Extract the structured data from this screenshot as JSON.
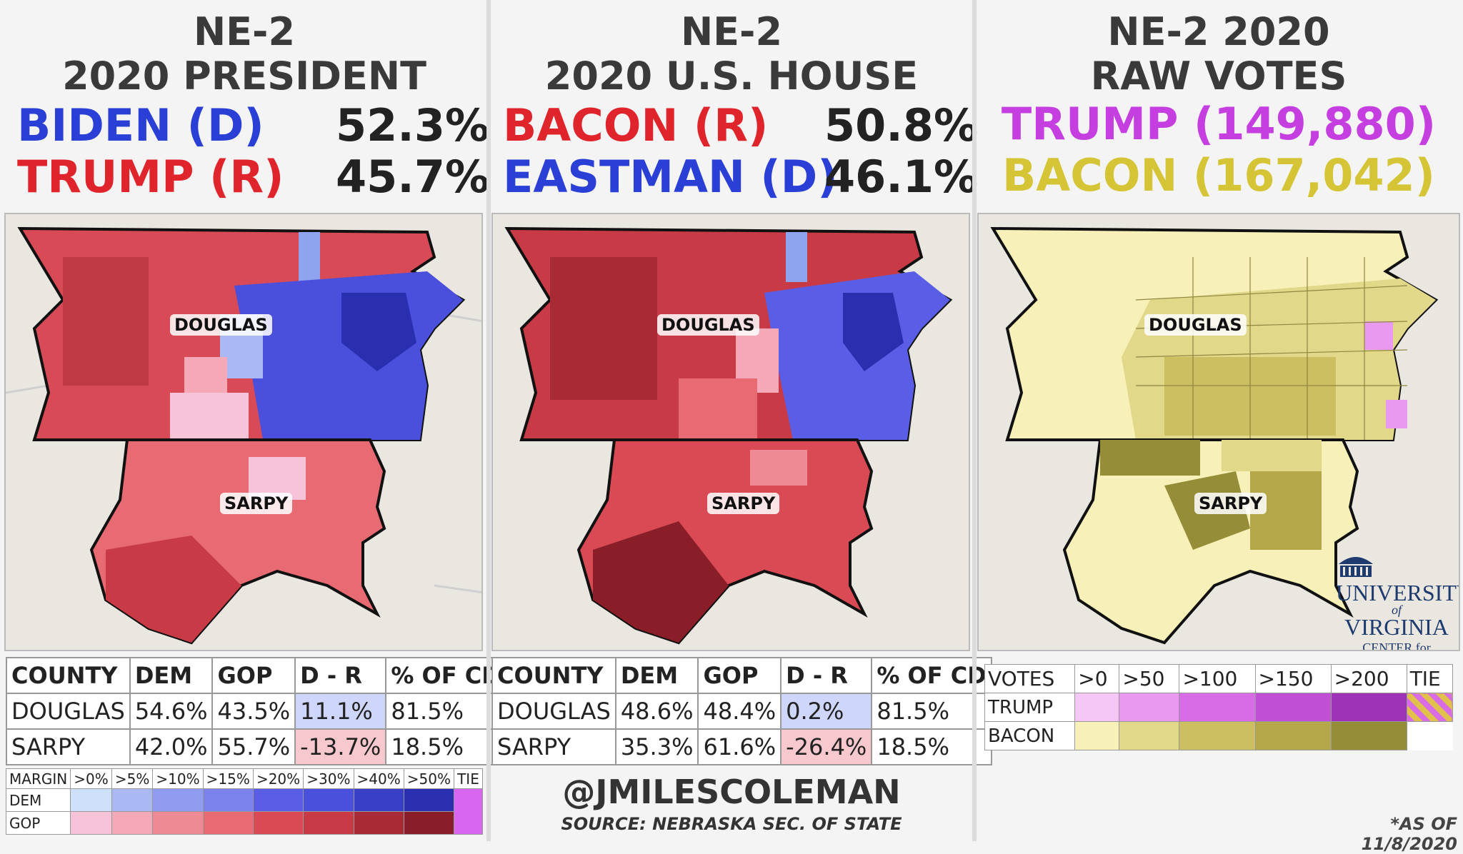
{
  "panels": {
    "president": {
      "title_line1": "NE-2",
      "title_line2": "2020 PRESIDENT",
      "cand1": {
        "name": "BIDEN (D)",
        "pct": "52.3%",
        "color": "#2a3fd6"
      },
      "cand2": {
        "name": "TRUMP (R)",
        "pct": "45.7%",
        "color": "#e0242c"
      },
      "county_labels": [
        "DOUGLAS",
        "SARPY"
      ],
      "table": {
        "headers": [
          "COUNTY",
          "DEM",
          "GOP",
          "D - R",
          "% OF CD"
        ],
        "rows": [
          [
            "DOUGLAS",
            "54.6%",
            "43.5%",
            "11.1%",
            "81.5%"
          ],
          [
            "SARPY",
            "42.0%",
            "55.7%",
            "-13.7%",
            "18.5%"
          ]
        ]
      },
      "legend": {
        "header": [
          "MARGIN",
          ">0%",
          ">5%",
          ">10%",
          ">15%",
          ">20%",
          ">30%",
          ">40%",
          ">50%",
          "TIE"
        ],
        "dem_label": "DEM",
        "gop_label": "GOP",
        "dem_colors": [
          "#cfe0fb",
          "#aab8f3",
          "#8f9cf0",
          "#7b82ec",
          "#5a5ee6",
          "#4a4fdc",
          "#3a3fc8",
          "#2a2fb0"
        ],
        "gop_colors": [
          "#f7c3d9",
          "#f5a9b8",
          "#ee8a93",
          "#e86a73",
          "#d94a55",
          "#c83a45",
          "#a82a35",
          "#8a1e28"
        ],
        "tie_color": "#d966f0"
      }
    },
    "house": {
      "title_line1": "NE-2",
      "title_line2": "2020 U.S. HOUSE",
      "cand1": {
        "name": "BACON (R)",
        "pct": "50.8%",
        "color": "#e0242c"
      },
      "cand2": {
        "name": "EASTMAN (D)",
        "pct": "46.1%",
        "color": "#2a3fd6"
      },
      "county_labels": [
        "DOUGLAS",
        "SARPY"
      ],
      "table": {
        "headers": [
          "COUNTY",
          "DEM",
          "GOP",
          "D - R",
          "% OF CD"
        ],
        "rows": [
          [
            "DOUGLAS",
            "48.6%",
            "48.4%",
            "0.2%",
            "81.5%"
          ],
          [
            "SARPY",
            "35.3%",
            "61.6%",
            "-26.4%",
            "18.5%"
          ]
        ]
      },
      "credit": "@JMILESCOLEMAN",
      "source": "SOURCE: NEBRASKA SEC. OF STATE"
    },
    "raw": {
      "title_line1": "NE-2 2020",
      "title_line2": "RAW VOTES",
      "cand1": {
        "name": "TRUMP (149,880)",
        "color": "#c43ee0"
      },
      "cand2": {
        "name": "BACON (167,042)",
        "color": "#d4c436"
      },
      "county_labels": [
        "DOUGLAS",
        "SARPY"
      ],
      "legend": {
        "header": [
          "VOTES",
          ">0",
          ">50",
          ">100",
          ">150",
          ">200",
          "TIE"
        ],
        "trump_label": "TRUMP",
        "bacon_label": "BACON",
        "trump_colors": [
          "#f5c7f7",
          "#e99af0",
          "#d86be6",
          "#c04fd4",
          "#9e33b8"
        ],
        "bacon_colors": [
          "#f7f0b8",
          "#e2d88a",
          "#cbbf62",
          "#b3a74a",
          "#968d38"
        ]
      },
      "logo_line1": "UNIVERSITY",
      "logo_line2": "of",
      "logo_line3": "VIRGINIA",
      "logo_line4": "CENTER for POLITICS",
      "asof": "*AS OF 11/8/2020"
    }
  }
}
